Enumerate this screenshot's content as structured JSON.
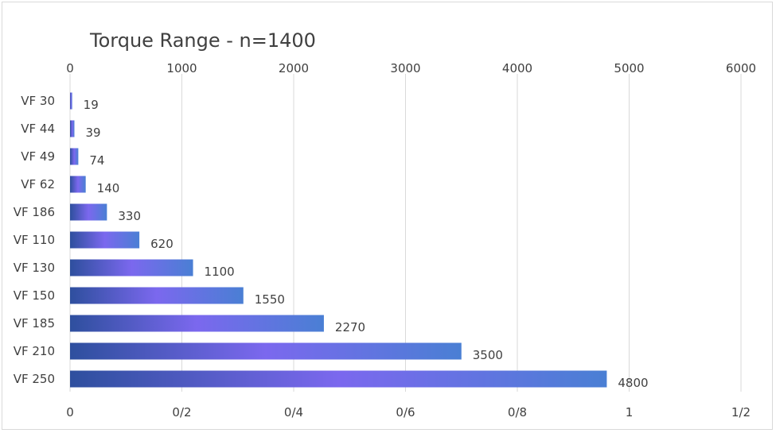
{
  "chart_data": {
    "type": "bar",
    "orientation": "horizontal",
    "title": "Torque Range - n=1400",
    "categories": [
      "VF 30",
      "VF 44",
      "VF 49",
      "VF 62",
      "VF 186",
      "VF 110",
      "VF 130",
      "VF 150",
      "VF 185",
      "VF 210",
      "VF 250"
    ],
    "values": [
      19,
      39,
      74,
      140,
      330,
      620,
      1100,
      1550,
      2270,
      3500,
      4800
    ],
    "data_labels": [
      "19",
      "39",
      "74",
      "140",
      "330",
      "620",
      "1100",
      "1550",
      "2270",
      "3500",
      "4800"
    ],
    "top_axis": {
      "ticks": [
        "0",
        "1000",
        "2000",
        "3000",
        "4000",
        "5000",
        "6000"
      ],
      "range": [
        0,
        6000
      ]
    },
    "bottom_axis": {
      "ticks": [
        "0",
        "0/2",
        "0/4",
        "0/6",
        "0/8",
        "1",
        "1/2"
      ]
    },
    "grid": true,
    "legend": "none",
    "colors": {
      "bar_dark": "#2e4f9e",
      "bar_mid": "#7b68ee",
      "bar_light": "#4a7fd4",
      "grid": "#d9d9d9",
      "text": "#404040"
    }
  }
}
